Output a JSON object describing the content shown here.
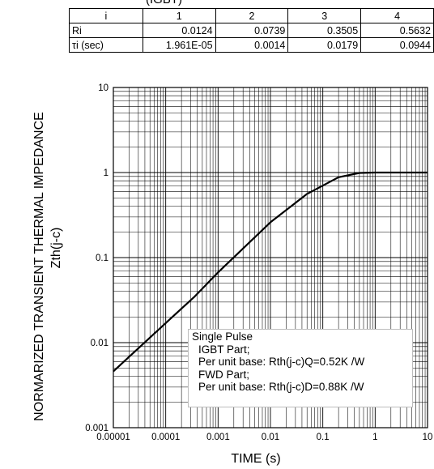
{
  "header": {
    "title": "(IGBT)"
  },
  "table": {
    "header": [
      "i",
      "1",
      "2",
      "3",
      "4"
    ],
    "rows": [
      {
        "label": "Ri",
        "values": [
          "0.0124",
          "0.0739",
          "0.3505",
          "0.5632"
        ]
      },
      {
        "label": "τi (sec)",
        "values": [
          "1.961E-05",
          "0.0014",
          "0.0179",
          "0.0944"
        ]
      }
    ]
  },
  "axes": {
    "ylabel_line1": "NORMARIZED TRANSIENT THERMAL IMPEDANCE",
    "ylabel_line2": "Zth(j-c)",
    "xlabel": "TIME (s)"
  },
  "annotation": {
    "line1": "Single Pulse",
    "line2": "IGBT Part;",
    "line3": "Per unit base: Rth(j-c)Q=0.52K /W",
    "line4": "FWD Part;",
    "line5": "Per unit base: Rth(j-c)D=0.88K /W"
  },
  "chart_data": {
    "type": "line",
    "xscale": "log",
    "yscale": "log",
    "xlim": [
      1e-05,
      10
    ],
    "ylim": [
      0.001,
      10
    ],
    "xticks": [
      "0.00001",
      "0.0001",
      "0.001",
      "0.01",
      "0.1",
      "1",
      "10"
    ],
    "yticks": [
      "0.001",
      "0.01",
      "0.1",
      "1",
      "10"
    ],
    "grid": true,
    "series": [
      {
        "x": [
          1e-05,
          0.0001,
          0.00036,
          0.001,
          0.01,
          0.05,
          0.2,
          0.5,
          1,
          10
        ],
        "y": [
          0.0046,
          0.017,
          0.035,
          0.067,
          0.26,
          0.56,
          0.88,
          0.99,
          1.0,
          1.0
        ]
      }
    ],
    "line_color": "#000000"
  }
}
